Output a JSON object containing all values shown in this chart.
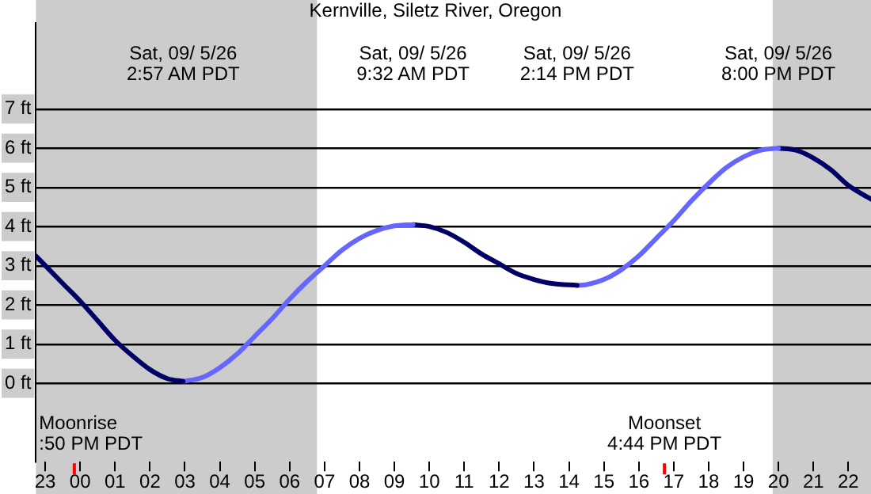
{
  "chart_data": {
    "type": "line",
    "title": "Kernville, Siletz River, Oregon",
    "xlim": [
      "--09-04T22:44",
      "--09-05T22:39"
    ],
    "xticks": [
      {
        "value": "--09-04T23:00",
        "label": "23"
      },
      {
        "value": "--09-05T00:00",
        "label": "00"
      },
      {
        "value": "--09-05T01:00",
        "label": "01"
      },
      {
        "value": "--09-05T02:00",
        "label": "02"
      },
      {
        "value": "--09-05T03:00",
        "label": "03"
      },
      {
        "value": "--09-05T04:00",
        "label": "04"
      },
      {
        "value": "--09-05T05:00",
        "label": "05"
      },
      {
        "value": "--09-05T06:00",
        "label": "06"
      },
      {
        "value": "--09-05T07:00",
        "label": "07"
      },
      {
        "value": "--09-05T08:00",
        "label": "08"
      },
      {
        "value": "--09-05T09:00",
        "label": "09"
      },
      {
        "value": "--09-05T10:00",
        "label": "10"
      },
      {
        "value": "--09-05T11:00",
        "label": "11"
      },
      {
        "value": "--09-05T12:00",
        "label": "12"
      },
      {
        "value": "--09-05T13:00",
        "label": "13"
      },
      {
        "value": "--09-05T14:00",
        "label": "14"
      },
      {
        "value": "--09-05T15:00",
        "label": "15"
      },
      {
        "value": "--09-05T16:00",
        "label": "16"
      },
      {
        "value": "--09-05T17:00",
        "label": "17"
      },
      {
        "value": "--09-05T18:00",
        "label": "18"
      },
      {
        "value": "--09-05T19:00",
        "label": "19"
      },
      {
        "value": "--09-05T20:00",
        "label": "20"
      },
      {
        "value": "--09-05T21:00",
        "label": "21"
      },
      {
        "value": "--09-05T22:00",
        "label": "22"
      }
    ],
    "ylim": [
      -2,
      9.2
    ],
    "yticks": [
      {
        "value": 0,
        "label": "0 ft"
      },
      {
        "value": 1,
        "label": "1 ft"
      },
      {
        "value": 2,
        "label": "2 ft"
      },
      {
        "value": 3,
        "label": "3 ft"
      },
      {
        "value": 4,
        "label": "4 ft"
      },
      {
        "value": 5,
        "label": "5 ft"
      },
      {
        "value": 6,
        "label": "6 ft"
      },
      {
        "value": 7,
        "label": "7 ft"
      }
    ],
    "grid": "y",
    "marker": "none",
    "line_style": "solid",
    "series": [
      {
        "color": "#000066",
        "x": [
          "--09-04T22:44",
          "--09-04T23:30",
          "--09-05T00:00",
          "--09-05T00:30",
          "--09-05T01:00",
          "--09-05T01:30",
          "--09-05T02:00",
          "--09-05T02:30",
          "--09-05T02:57"
        ],
        "values": [
          3.25,
          2.55,
          2.1,
          1.6,
          1.1,
          0.7,
          0.35,
          0.12,
          0.05
        ]
      },
      {
        "color": "#6666ff",
        "x": [
          "--09-05T02:57",
          "--09-05T03:30",
          "--09-05T04:00",
          "--09-05T04:30",
          "--09-05T05:00",
          "--09-05T05:30",
          "--09-05T06:00",
          "--09-05T06:30",
          "--09-05T07:00",
          "--09-05T07:30",
          "--09-05T08:00",
          "--09-05T08:30",
          "--09-05T09:00",
          "--09-05T09:32"
        ],
        "values": [
          0.05,
          0.15,
          0.4,
          0.75,
          1.2,
          1.65,
          2.15,
          2.6,
          3.0,
          3.4,
          3.7,
          3.9,
          4.02,
          4.05
        ]
      },
      {
        "color": "#000066",
        "x": [
          "--09-05T09:32",
          "--09-05T10:00",
          "--09-05T10:30",
          "--09-05T11:00",
          "--09-05T11:30",
          "--09-05T12:00",
          "--09-05T12:30",
          "--09-05T13:00",
          "--09-05T13:30",
          "--09-05T14:14"
        ],
        "values": [
          4.05,
          4.0,
          3.85,
          3.6,
          3.3,
          3.05,
          2.8,
          2.65,
          2.55,
          2.5
        ]
      },
      {
        "color": "#6666ff",
        "x": [
          "--09-05T14:14",
          "--09-05T14:30",
          "--09-05T15:00",
          "--09-05T15:30",
          "--09-05T16:00",
          "--09-05T16:30",
          "--09-05T17:00",
          "--09-05T17:30",
          "--09-05T18:00",
          "--09-05T18:30",
          "--09-05T19:00",
          "--09-05T19:30",
          "--09-05T20:00"
        ],
        "values": [
          2.5,
          2.52,
          2.65,
          2.9,
          3.25,
          3.7,
          4.15,
          4.65,
          5.1,
          5.5,
          5.78,
          5.95,
          6.0
        ]
      },
      {
        "color": "#000066",
        "x": [
          "--09-05T20:00",
          "--09-05T20:30",
          "--09-05T21:00",
          "--09-05T21:30",
          "--09-05T22:00",
          "--09-05T22:39"
        ],
        "values": [
          6.0,
          5.95,
          5.75,
          5.45,
          5.05,
          4.7
        ]
      }
    ],
    "bands": [
      {
        "axis": "x",
        "from": "--09-04T22:44",
        "to": "--09-05T06:47",
        "color": "#cccccc"
      },
      {
        "axis": "x",
        "from": "--09-05T19:50",
        "to": "--09-05T22:39",
        "color": "#cccccc"
      }
    ],
    "ref_lines": [
      {
        "axis": "x",
        "value": "--09-04T23:50",
        "label": "Moonrise\n:50 PM PDT",
        "color": "#ff0000"
      },
      {
        "axis": "x",
        "value": "--09-05T16:44",
        "label": "Moonset\n4:44 PM PDT",
        "color": "#ff0000"
      }
    ],
    "annotations": [
      "Sat, 09/ 5/26\n2:57 AM PDT",
      "Sat, 09/ 5/26\n9:32 AM PDT",
      "Sat, 09/ 5/26\n2:14 PM PDT",
      "Sat, 09/ 5/26\n8:00 PM PDT"
    ]
  }
}
